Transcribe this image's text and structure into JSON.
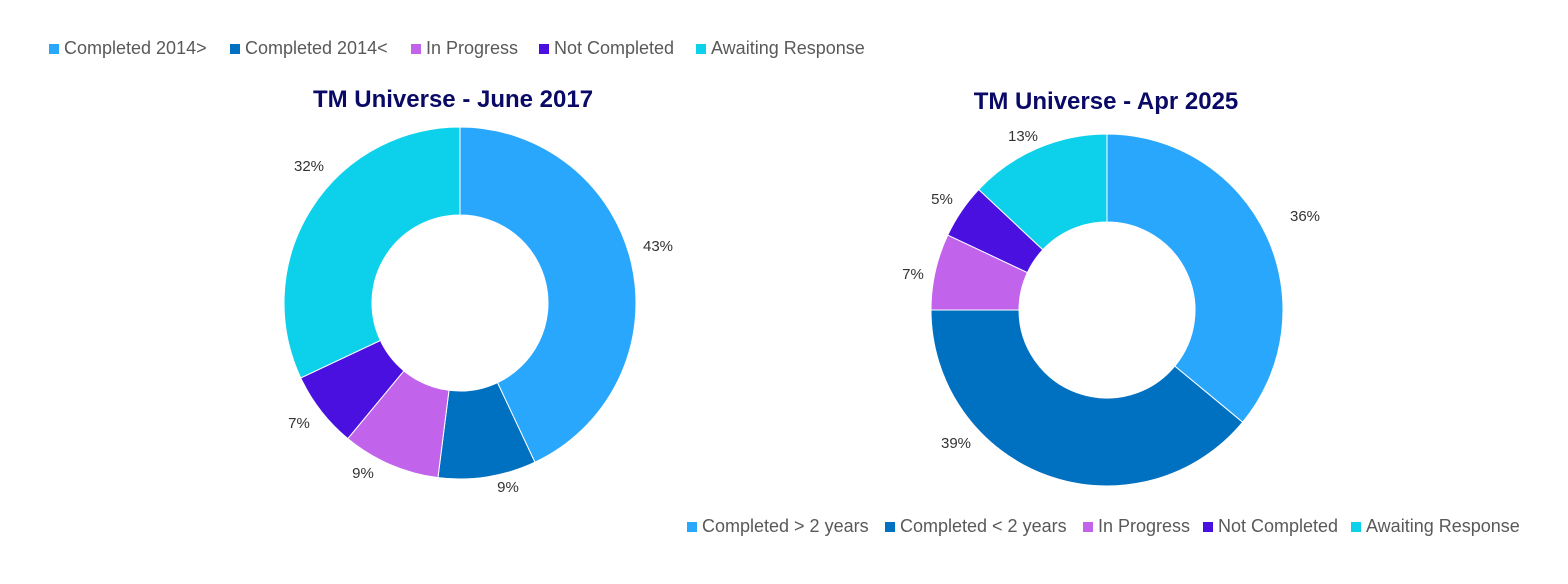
{
  "chart_data": [
    {
      "type": "pie",
      "title": "TM Universe - June 2017",
      "categories": [
        "Completed 2014>",
        "Completed 2014<",
        "In Progress",
        "Not Completed",
        "Awaiting Response"
      ],
      "values": [
        43,
        9,
        9,
        7,
        32
      ],
      "labels": [
        "43%",
        "9%",
        "9%",
        "7%",
        "32%"
      ],
      "colors": [
        "#29a7fc",
        "#0070c0",
        "#c263ec",
        "#4a10e0",
        "#0dd1ea"
      ],
      "legend_position": "top-left",
      "hole": "donut"
    },
    {
      "type": "pie",
      "title": "TM Universe - Apr 2025",
      "categories": [
        "Completed > 2 years",
        "Completed < 2 years",
        "In Progress",
        "Not Completed",
        "Awaiting Response"
      ],
      "values": [
        36,
        39,
        7,
        5,
        13
      ],
      "labels": [
        "36%",
        "39%",
        "7%",
        "5%",
        "13%"
      ],
      "colors": [
        "#29a7fc",
        "#0070c0",
        "#c263ec",
        "#4a10e0",
        "#0dd1ea"
      ],
      "legend_position": "bottom-right",
      "hole": "donut"
    }
  ]
}
